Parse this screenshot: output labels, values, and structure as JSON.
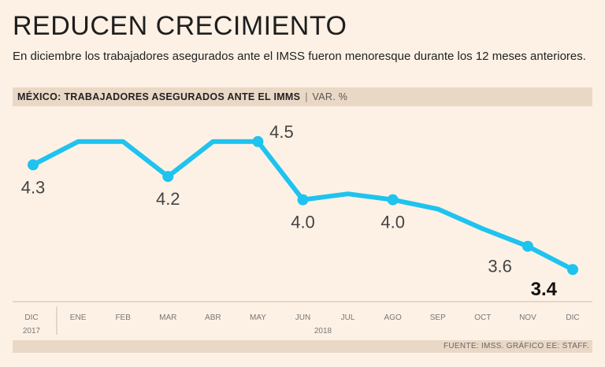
{
  "header": {
    "title": "REDUCEN CRECIMIENTO",
    "subtitle": "En diciembre los trabajadores asegurados ante el IMSS fueron menoresque durante los 12 meses anteriores.",
    "bar_label": "MÉXICO: TRABAJADORES ASEGURADOS ANTE EL IMMS",
    "bar_separator": "|",
    "bar_unit": "VAR. %"
  },
  "footer": {
    "source": "FUENTE: IMSS. GRÁFICO EE: STAFF."
  },
  "chart_data": {
    "type": "line",
    "categories": [
      "DIC",
      "ENE",
      "FEB",
      "MAR",
      "ABR",
      "MAY",
      "JUN",
      "JUL",
      "AGO",
      "SEP",
      "OCT",
      "NOV",
      "DIC"
    ],
    "year_labels": [
      {
        "index": 0,
        "label": "2017"
      },
      {
        "index": 6,
        "label": "2018"
      }
    ],
    "series": [
      {
        "values": [
          4.3,
          4.5,
          4.5,
          4.2,
          4.5,
          4.5,
          4.0,
          4.05,
          4.0,
          3.92,
          3.75,
          3.6,
          3.4
        ],
        "color": "#1ec3ef"
      }
    ],
    "data_labels": [
      {
        "index": 0,
        "label": "4.3",
        "position": "below",
        "bold": false
      },
      {
        "index": 3,
        "label": "4.2",
        "position": "below",
        "bold": false
      },
      {
        "index": 5,
        "label": "4.5",
        "position": "above-right",
        "bold": false
      },
      {
        "index": 6,
        "label": "4.0",
        "position": "below",
        "bold": false
      },
      {
        "index": 8,
        "label": "4.0",
        "position": "below",
        "bold": false
      },
      {
        "index": 11,
        "label": "3.6",
        "position": "below-left",
        "bold": false
      },
      {
        "index": 12,
        "label": "3.4",
        "position": "below-left",
        "bold": true
      }
    ],
    "markers": [
      0,
      3,
      5,
      6,
      8,
      11,
      12
    ],
    "ylim": [
      3.3,
      4.6
    ],
    "xlabel": "",
    "ylabel": "",
    "grid": false,
    "legend": "none"
  }
}
